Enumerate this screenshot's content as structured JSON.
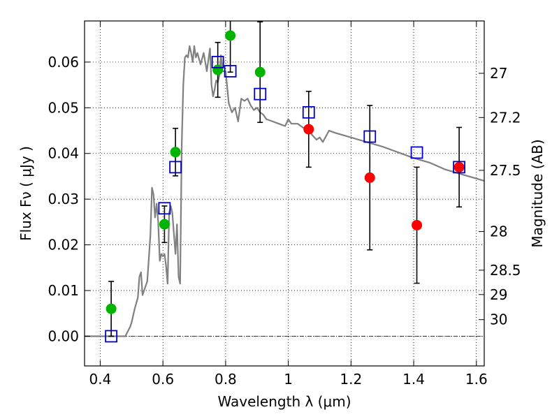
{
  "chart_data": {
    "type": "scatter",
    "xlabel": "Wavelength  λ (μm)",
    "ylabel": "Flux  Fν  ( μJy )",
    "y2label": "Magnitude (AB)",
    "xlim": [
      0.35,
      1.625
    ],
    "ylim": [
      -0.0065,
      0.069
    ],
    "grid": true,
    "x_ticks": [
      {
        "v": 0.4,
        "label": "0.4"
      },
      {
        "v": 0.6,
        "label": "0.6"
      },
      {
        "v": 0.8,
        "label": "0.8"
      },
      {
        "v": 1.0,
        "label": "1"
      },
      {
        "v": 1.2,
        "label": "1.2"
      },
      {
        "v": 1.4,
        "label": "1.4"
      },
      {
        "v": 1.6,
        "label": "1.6"
      }
    ],
    "y_ticks": [
      {
        "v": 0.0,
        "label": "0.00"
      },
      {
        "v": 0.01,
        "label": "0.01"
      },
      {
        "v": 0.02,
        "label": "0.02"
      },
      {
        "v": 0.03,
        "label": "0.03"
      },
      {
        "v": 0.04,
        "label": "0.04"
      },
      {
        "v": 0.05,
        "label": "0.05"
      },
      {
        "v": 0.06,
        "label": "0.06"
      }
    ],
    "mag_ticks": [
      {
        "mag": 27,
        "label": "27"
      },
      {
        "mag": 27.2,
        "label": "27.2"
      },
      {
        "mag": 27.5,
        "label": "27.5"
      },
      {
        "mag": 28,
        "label": "28"
      },
      {
        "mag": 28.5,
        "label": "28.5"
      },
      {
        "mag": 29,
        "label": "29"
      },
      {
        "mag": 30,
        "label": "30"
      }
    ],
    "model_curve": {
      "color": "#808080",
      "x": [
        0.35,
        0.48,
        0.495,
        0.5,
        0.51,
        0.52,
        0.525,
        0.53,
        0.535,
        0.54,
        0.55,
        0.555,
        0.56,
        0.565,
        0.57,
        0.575,
        0.58,
        0.585,
        0.59,
        0.595,
        0.6,
        0.605,
        0.61,
        0.615,
        0.62,
        0.625,
        0.63,
        0.64,
        0.645,
        0.65,
        0.655,
        0.66,
        0.665,
        0.67,
        0.675,
        0.68,
        0.685,
        0.69,
        0.695,
        0.7,
        0.705,
        0.71,
        0.72,
        0.73,
        0.74,
        0.75,
        0.755,
        0.76,
        0.765,
        0.77,
        0.775,
        0.78,
        0.785,
        0.79,
        0.8,
        0.81,
        0.82,
        0.83,
        0.84,
        0.85,
        0.86,
        0.87,
        0.88,
        0.89,
        0.9,
        0.91,
        0.92,
        0.93,
        0.95,
        0.97,
        0.99,
        1.0,
        1.01,
        1.03,
        1.05,
        1.07,
        1.09,
        1.1,
        1.11,
        1.13,
        1.15,
        1.2,
        1.3,
        1.4,
        1.45,
        1.5,
        1.55,
        1.6,
        1.625
      ],
      "y": [
        0,
        0,
        0.002,
        0.003,
        0.006,
        0.0085,
        0.013,
        0.014,
        0.009,
        0.01,
        0.012,
        0.017,
        0.022,
        0.0325,
        0.031,
        0.026,
        0.029,
        0.025,
        0.0165,
        0.018,
        0.0175,
        0.018,
        0.0155,
        0.0115,
        0.027,
        0.0285,
        0.027,
        0.018,
        0.0245,
        0.013,
        0.0115,
        0.042,
        0.055,
        0.061,
        0.0615,
        0.061,
        0.0635,
        0.062,
        0.06,
        0.0635,
        0.061,
        0.062,
        0.0595,
        0.062,
        0.058,
        0.063,
        0.055,
        0.0525,
        0.054,
        0.056,
        0.0555,
        0.057,
        0.0615,
        0.058,
        0.058,
        0.051,
        0.049,
        0.05,
        0.047,
        0.052,
        0.0515,
        0.052,
        0.0505,
        0.0495,
        0.05,
        0.049,
        0.0485,
        0.0475,
        0.047,
        0.0465,
        0.046,
        0.0475,
        0.0465,
        0.0465,
        0.0455,
        0.0445,
        0.043,
        0.0435,
        0.0425,
        0.045,
        0.0445,
        0.0435,
        0.0415,
        0.039,
        0.038,
        0.0365,
        0.0355,
        0.0345,
        0.034
      ]
    },
    "series": [
      {
        "color": "#00b400",
        "marker": "circle",
        "x": [
          0.435,
          0.605,
          0.64,
          0.775,
          0.815,
          0.91
        ],
        "y": [
          0.006,
          0.0245,
          0.0403,
          0.0583,
          0.0658,
          0.0578
        ],
        "yerr": [
          0.006,
          0.004,
          0.0052,
          0.006,
          0.008,
          0.011
        ]
      },
      {
        "color": "#ff0000",
        "marker": "circle",
        "x": [
          1.065,
          1.26,
          1.41,
          1.545
        ],
        "y": [
          0.0453,
          0.0347,
          0.0243,
          0.037
        ],
        "yerr": [
          0.0083,
          0.0158,
          0.0127,
          0.0087
        ]
      },
      {
        "color": "#0000cc",
        "marker": "square",
        "x": [
          0.435,
          0.605,
          0.64,
          0.775,
          0.815,
          0.91,
          1.065,
          1.26,
          1.41,
          1.545
        ],
        "y": [
          0.0,
          0.028,
          0.037,
          0.06,
          0.058,
          0.053,
          0.049,
          0.0437,
          0.0402,
          0.037
        ]
      }
    ]
  }
}
